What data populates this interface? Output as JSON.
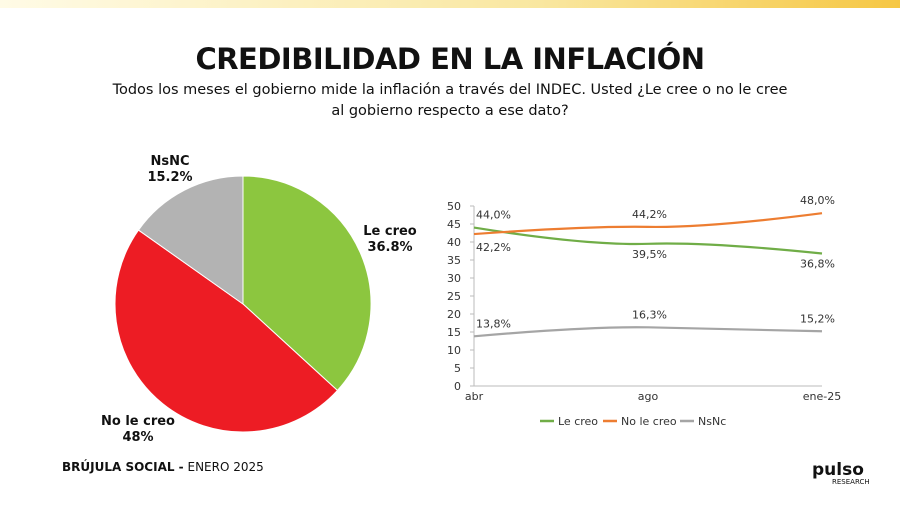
{
  "title": "CREDIBILIDAD EN LA INFLACIÓN",
  "subtitle": "Todos los meses el gobierno mide la inflación a través del INDEC. Usted ¿Le cree o no le cree al gobierno respecto a ese dato?",
  "footer": {
    "brand": "BRÚJULA SOCIAL -",
    "date": "ENERO 2025"
  },
  "logo": {
    "text": "pulso",
    "sub": "RESEARCH"
  },
  "chart_data": [
    {
      "type": "pie",
      "slices": [
        {
          "label": "Le creo",
          "value": 36.8,
          "display": "36.8%",
          "color": "#8cc63f"
        },
        {
          "label": "No le creo",
          "value": 48,
          "display": "48%",
          "color": "#ed1c24"
        },
        {
          "label": "NsNC",
          "value": 15.2,
          "display": "15.2%",
          "color": "#b3b3b3"
        }
      ]
    },
    {
      "type": "line",
      "categories": [
        "abr",
        "ago",
        "ene-25"
      ],
      "ylim": [
        0,
        50
      ],
      "yticks": [
        0,
        5,
        10,
        15,
        20,
        25,
        30,
        35,
        40,
        45,
        50
      ],
      "legend": "bottom",
      "grid": false,
      "series": [
        {
          "name": "Le creo",
          "values": [
            44.0,
            39.5,
            36.8
          ],
          "labels": [
            "44,0%",
            "39,5%",
            "36,8%"
          ],
          "color": "#70ad47"
        },
        {
          "name": "No le creo",
          "values": [
            42.2,
            44.2,
            48.0
          ],
          "labels": [
            "42,2%",
            "44,2%",
            "48,0%"
          ],
          "color": "#ed7d31"
        },
        {
          "name": "NsNc",
          "values": [
            13.8,
            16.3,
            15.2
          ],
          "labels": [
            "13,8%",
            "16,3%",
            "15,2%"
          ],
          "color": "#a5a5a5"
        }
      ]
    }
  ]
}
